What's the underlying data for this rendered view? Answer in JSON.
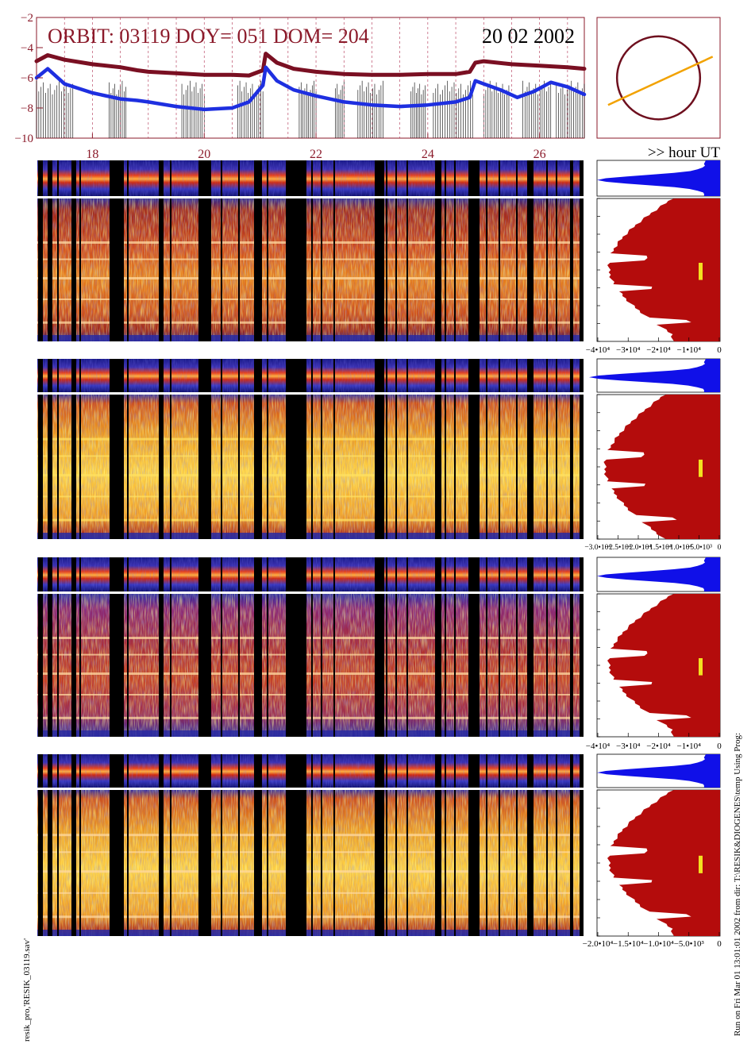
{
  "header": {
    "orbit_label": "ORBIT: 03119 DOY=  051 DOM=  204",
    "date": "20 02 2002",
    "hour_axis_label": ">> hour UT"
  },
  "colors": {
    "frame": "#8b1a2a",
    "curve_upper": "#7a0f22",
    "curve_lower": "#1e2fe0",
    "orbit_circle": "#6e0f1e",
    "orbit_track": "#f2a200",
    "profile_blue": "#1010e8",
    "profile_red": "#b40c0c",
    "marker": "#f2e020"
  },
  "footer": {
    "left_note": "resik_pro,'RESIK_03119.sav'",
    "right_note": "Run on Fri Mar 01 13:01:01 2002  from dir: T:\\RESIK&DIOGENES\\temp Using Prog:"
  },
  "chart_data": [
    {
      "type": "line",
      "title": "",
      "xlabel": ">> hour UT",
      "ylabel": "",
      "xlim": [
        17.0,
        26.8
      ],
      "ylim": [
        -10,
        -2
      ],
      "x_ticks": [
        "18",
        "20",
        "22",
        "24",
        "26"
      ],
      "x_tick_values": [
        18,
        20,
        22,
        24,
        26
      ],
      "y_ticks": [
        "−2",
        "−4",
        "−6",
        "−8",
        "−10"
      ],
      "y_tick_values": [
        -2,
        -4,
        -6,
        -8,
        -10
      ],
      "grid": "vertical-dashed",
      "series": [
        {
          "color": "#7a0f22",
          "x": [
            17.0,
            17.2,
            17.5,
            18.0,
            18.5,
            18.8,
            19.0,
            19.5,
            20.0,
            20.5,
            20.8,
            21.05,
            21.1,
            21.3,
            21.6,
            22.0,
            22.5,
            23.0,
            23.5,
            24.0,
            24.5,
            24.75,
            24.85,
            25.0,
            25.5,
            26.0,
            26.5,
            26.8
          ],
          "y": [
            -4.9,
            -4.5,
            -4.8,
            -5.1,
            -5.3,
            -5.5,
            -5.6,
            -5.7,
            -5.8,
            -5.8,
            -5.85,
            -5.5,
            -4.4,
            -5.0,
            -5.4,
            -5.6,
            -5.75,
            -5.8,
            -5.8,
            -5.75,
            -5.75,
            -5.6,
            -5.0,
            -4.9,
            -5.1,
            -5.2,
            -5.3,
            -5.4
          ]
        },
        {
          "color": "#1e2fe0",
          "x": [
            17.0,
            17.2,
            17.5,
            18.0,
            18.5,
            18.8,
            19.0,
            19.5,
            20.0,
            20.5,
            20.8,
            21.05,
            21.1,
            21.3,
            21.6,
            22.0,
            22.5,
            23.0,
            23.5,
            24.0,
            24.5,
            24.75,
            24.85,
            25.0,
            25.3,
            25.6,
            25.9,
            26.2,
            26.5,
            26.8
          ],
          "y": [
            -6.0,
            -5.4,
            -6.4,
            -7.0,
            -7.4,
            -7.5,
            -7.6,
            -7.9,
            -8.1,
            -8.0,
            -7.6,
            -6.5,
            -5.3,
            -6.2,
            -6.8,
            -7.2,
            -7.6,
            -7.8,
            -7.9,
            -7.8,
            -7.6,
            -7.3,
            -6.2,
            -6.4,
            -6.8,
            -7.3,
            -6.9,
            -6.3,
            -6.6,
            -7.1
          ]
        }
      ]
    },
    {
      "type": "scatter",
      "title": "",
      "xlim": [
        -1,
        1
      ],
      "ylim": [
        -1,
        1
      ],
      "circle_radius": 0.75,
      "x": [
        -0.82,
        0.88
      ],
      "y": [
        -0.45,
        0.35
      ]
    },
    {
      "type": "area",
      "title": "",
      "x_ticks": [
        "−4•10⁴",
        "−3•10⁴",
        "−2•10⁴",
        "−1•10⁴",
        "0"
      ],
      "x_tick_values": [
        -40000,
        -30000,
        -20000,
        -10000,
        0
      ]
    },
    {
      "type": "area",
      "title": "",
      "x_ticks": [
        "−3.0•10⁴",
        "−2.5•10⁴",
        "−2.0•10⁴",
        "−1.5•10⁴",
        "−1.0•10⁴",
        "−5.0•10³",
        "0"
      ],
      "x_tick_values": [
        -30000,
        -25000,
        -20000,
        -15000,
        -10000,
        -5000,
        0
      ]
    },
    {
      "type": "area",
      "title": "",
      "x_ticks": [
        "−4•10⁴",
        "−3•10⁴",
        "−2•10⁴",
        "−1•10⁴",
        "0"
      ],
      "x_tick_values": [
        -40000,
        -30000,
        -20000,
        -10000,
        0
      ]
    },
    {
      "type": "area",
      "title": "",
      "x_ticks": [
        "−2.0•10⁴",
        "−1.5•10⁴",
        "−1.0•10⁴",
        "−5.0•10³",
        "0"
      ],
      "x_tick_values": [
        -20000,
        -15000,
        -10000,
        -5000,
        0
      ]
    }
  ]
}
